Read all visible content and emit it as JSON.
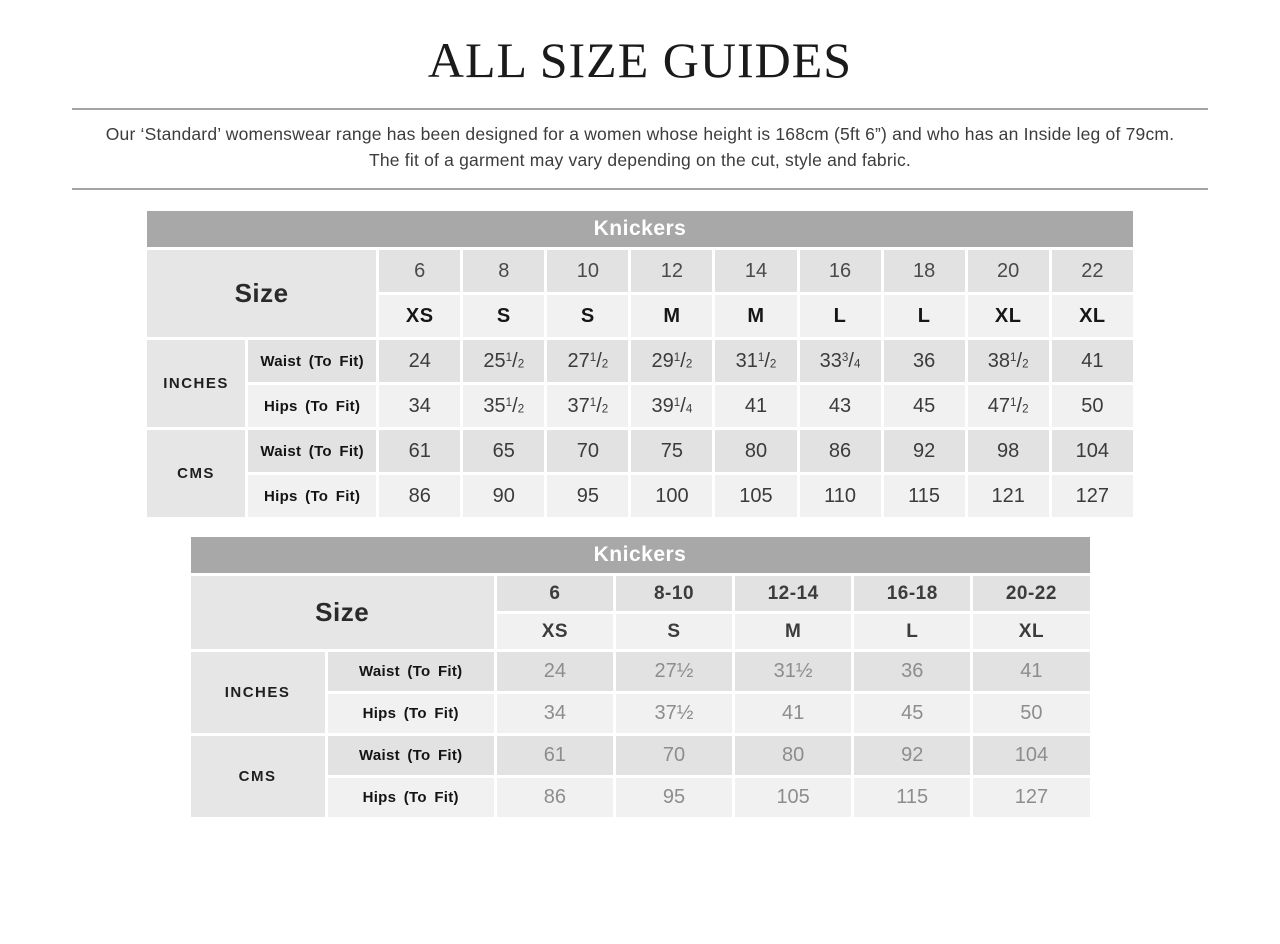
{
  "page": {
    "title": "ALL SIZE GUIDES",
    "intro": "Our ‘Standard’ womenswear range has been designed for a women whose height is 168cm (5ft 6”) and who has an Inside leg of 79cm. The fit of a garment may vary depending on the cut, style and fabric."
  },
  "colors": {
    "table_header_bg": "#a8a8a8",
    "table_header_text": "#ffffff",
    "row_dark_bg": "#e2e2e2",
    "row_light_bg": "#f1f1f1",
    "span_cell_bg": "#e6e6e6",
    "value_text_dark": "#3b3b3b",
    "value_text_gray": "#8d8d8d",
    "rule_color": "#a3a3a3"
  },
  "table1": {
    "title": "Knickers",
    "size_label": "Size",
    "numbers": [
      "6",
      "8",
      "10",
      "12",
      "14",
      "16",
      "18",
      "20",
      "22"
    ],
    "letters": [
      "XS",
      "S",
      "S",
      "M",
      "M",
      "L",
      "L",
      "XL",
      "XL"
    ],
    "sections": [
      {
        "unit": "INCHES",
        "rows": [
          {
            "label": "Waist (To Fit)",
            "values": [
              "24",
              "25 1/2",
              "27 1/2",
              "29 1/2",
              "31 1/2",
              "33 3/4",
              "36",
              "38 1/2",
              "41"
            ]
          },
          {
            "label": "Hips (To Fit)",
            "values": [
              "34",
              "35 1/2",
              "37 1/2",
              "39 1/4",
              "41",
              "43",
              "45",
              "47 1/2",
              "50"
            ]
          }
        ]
      },
      {
        "unit": "CMS",
        "rows": [
          {
            "label": "Waist (To Fit)",
            "values": [
              "61",
              "65",
              "70",
              "75",
              "80",
              "86",
              "92",
              "98",
              "104"
            ]
          },
          {
            "label": "Hips (To Fit)",
            "values": [
              "86",
              "90",
              "95",
              "100",
              "105",
              "110",
              "115",
              "121",
              "127"
            ]
          }
        ]
      }
    ]
  },
  "table2": {
    "title": "Knickers",
    "size_label": "Size",
    "numbers": [
      "6",
      "8-10",
      "12-14",
      "16-18",
      "20-22"
    ],
    "letters": [
      "XS",
      "S",
      "M",
      "L",
      "XL"
    ],
    "sections": [
      {
        "unit": "INCHES",
        "rows": [
          {
            "label": "Waist (To Fit)",
            "values": [
              "24",
              "27½",
              "31½",
              "36",
              "41"
            ]
          },
          {
            "label": "Hips (To Fit)",
            "values": [
              "34",
              "37½",
              "41",
              "45",
              "50"
            ]
          }
        ]
      },
      {
        "unit": "CMS",
        "rows": [
          {
            "label": "Waist (To Fit)",
            "values": [
              "61",
              "70",
              "80",
              "92",
              "104"
            ]
          },
          {
            "label": "Hips (To Fit)",
            "values": [
              "86",
              "95",
              "105",
              "115",
              "127"
            ]
          }
        ]
      }
    ]
  }
}
